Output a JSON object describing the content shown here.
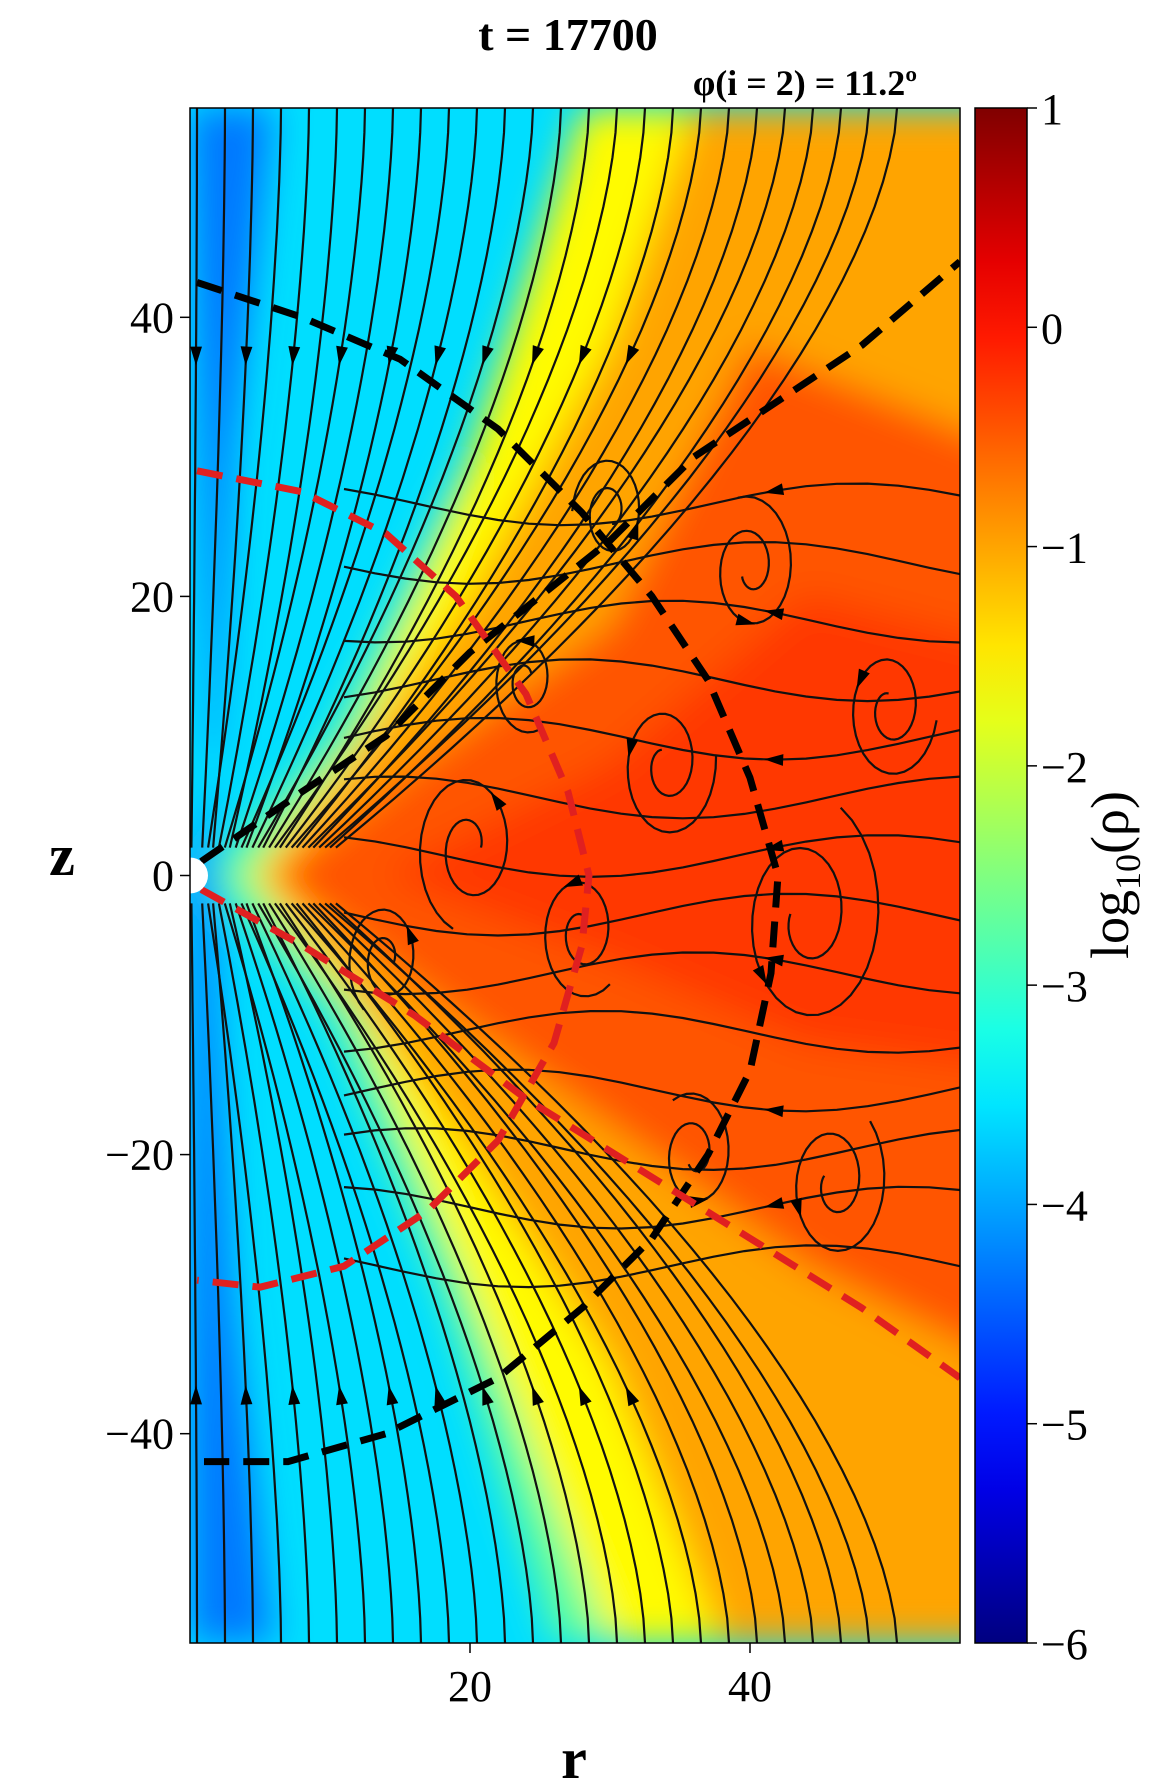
{
  "chart_data": {
    "type": "heatmap",
    "title": "t = 17700",
    "subtitle": "φ(i = 2) = 11.2º",
    "xlabel": "r",
    "ylabel": "z",
    "xlim": [
      0,
      55
    ],
    "ylim": [
      -55,
      55
    ],
    "x_ticks": [
      {
        "value": 20,
        "label": "20"
      },
      {
        "value": 40,
        "label": "40"
      }
    ],
    "y_ticks": [
      {
        "value": 40,
        "label": "40"
      },
      {
        "value": 20,
        "label": "20"
      },
      {
        "value": 0,
        "label": "0"
      },
      {
        "value": -20,
        "label": "−20"
      },
      {
        "value": -40,
        "label": "−40"
      }
    ],
    "colorbar": {
      "label": "log10(ρ)",
      "label_base": "log",
      "label_sub": "10",
      "label_arg": "(ρ)",
      "range": [
        -6,
        1
      ],
      "ticks": [
        {
          "value": 1,
          "label": "1"
        },
        {
          "value": 0,
          "label": "0"
        },
        {
          "value": -1,
          "label": "−1"
        },
        {
          "value": -2,
          "label": "−2"
        },
        {
          "value": -3,
          "label": "−3"
        },
        {
          "value": -4,
          "label": "−4"
        },
        {
          "value": -5,
          "label": "−5"
        },
        {
          "value": -6,
          "label": "−6"
        }
      ],
      "colormap": "jet"
    },
    "overlays": [
      {
        "kind": "dashed-contour",
        "color": "#000000",
        "description": "inner cone",
        "points": [
          [
            0.8,
            1
          ],
          [
            8,
            6
          ],
          [
            14,
            10
          ],
          [
            20,
            16
          ],
          [
            25,
            20
          ],
          [
            30,
            24
          ],
          [
            36,
            30
          ],
          [
            42,
            34
          ],
          [
            48,
            38
          ],
          [
            55,
            44
          ]
        ]
      },
      {
        "kind": "dashed-contour",
        "color": "#000000",
        "points": [
          [
            0.5,
            42.5
          ],
          [
            8,
            40
          ],
          [
            15,
            37
          ],
          [
            22,
            32
          ],
          [
            28,
            26
          ],
          [
            33,
            20
          ],
          [
            37,
            14
          ],
          [
            40,
            7
          ],
          [
            42,
            0
          ],
          [
            41.5,
            -7
          ],
          [
            40,
            -14
          ],
          [
            37,
            -20
          ],
          [
            33,
            -26
          ],
          [
            28,
            -31
          ],
          [
            22,
            -36
          ],
          [
            14,
            -40
          ],
          [
            7,
            -42
          ],
          [
            1,
            -42
          ]
        ]
      },
      {
        "kind": "dashed-contour",
        "color": "#e02020",
        "points": [
          [
            0.5,
            29
          ],
          [
            8,
            27.5
          ],
          [
            14,
            24.5
          ],
          [
            19,
            20
          ],
          [
            24,
            13
          ],
          [
            27,
            6
          ],
          [
            28.5,
            0
          ],
          [
            28,
            -5
          ],
          [
            26,
            -12
          ],
          [
            22,
            -19
          ],
          [
            17,
            -24
          ],
          [
            11,
            -28
          ],
          [
            5,
            -29.5
          ],
          [
            0.5,
            -29
          ]
        ]
      },
      {
        "kind": "dashed-contour",
        "color": "#e02020",
        "points": [
          [
            0.8,
            -1
          ],
          [
            8,
            -5
          ],
          [
            16,
            -10
          ],
          [
            24,
            -16
          ],
          [
            32,
            -21
          ],
          [
            40,
            -26
          ],
          [
            48,
            -31
          ],
          [
            55,
            -36
          ]
        ]
      }
    ]
  }
}
